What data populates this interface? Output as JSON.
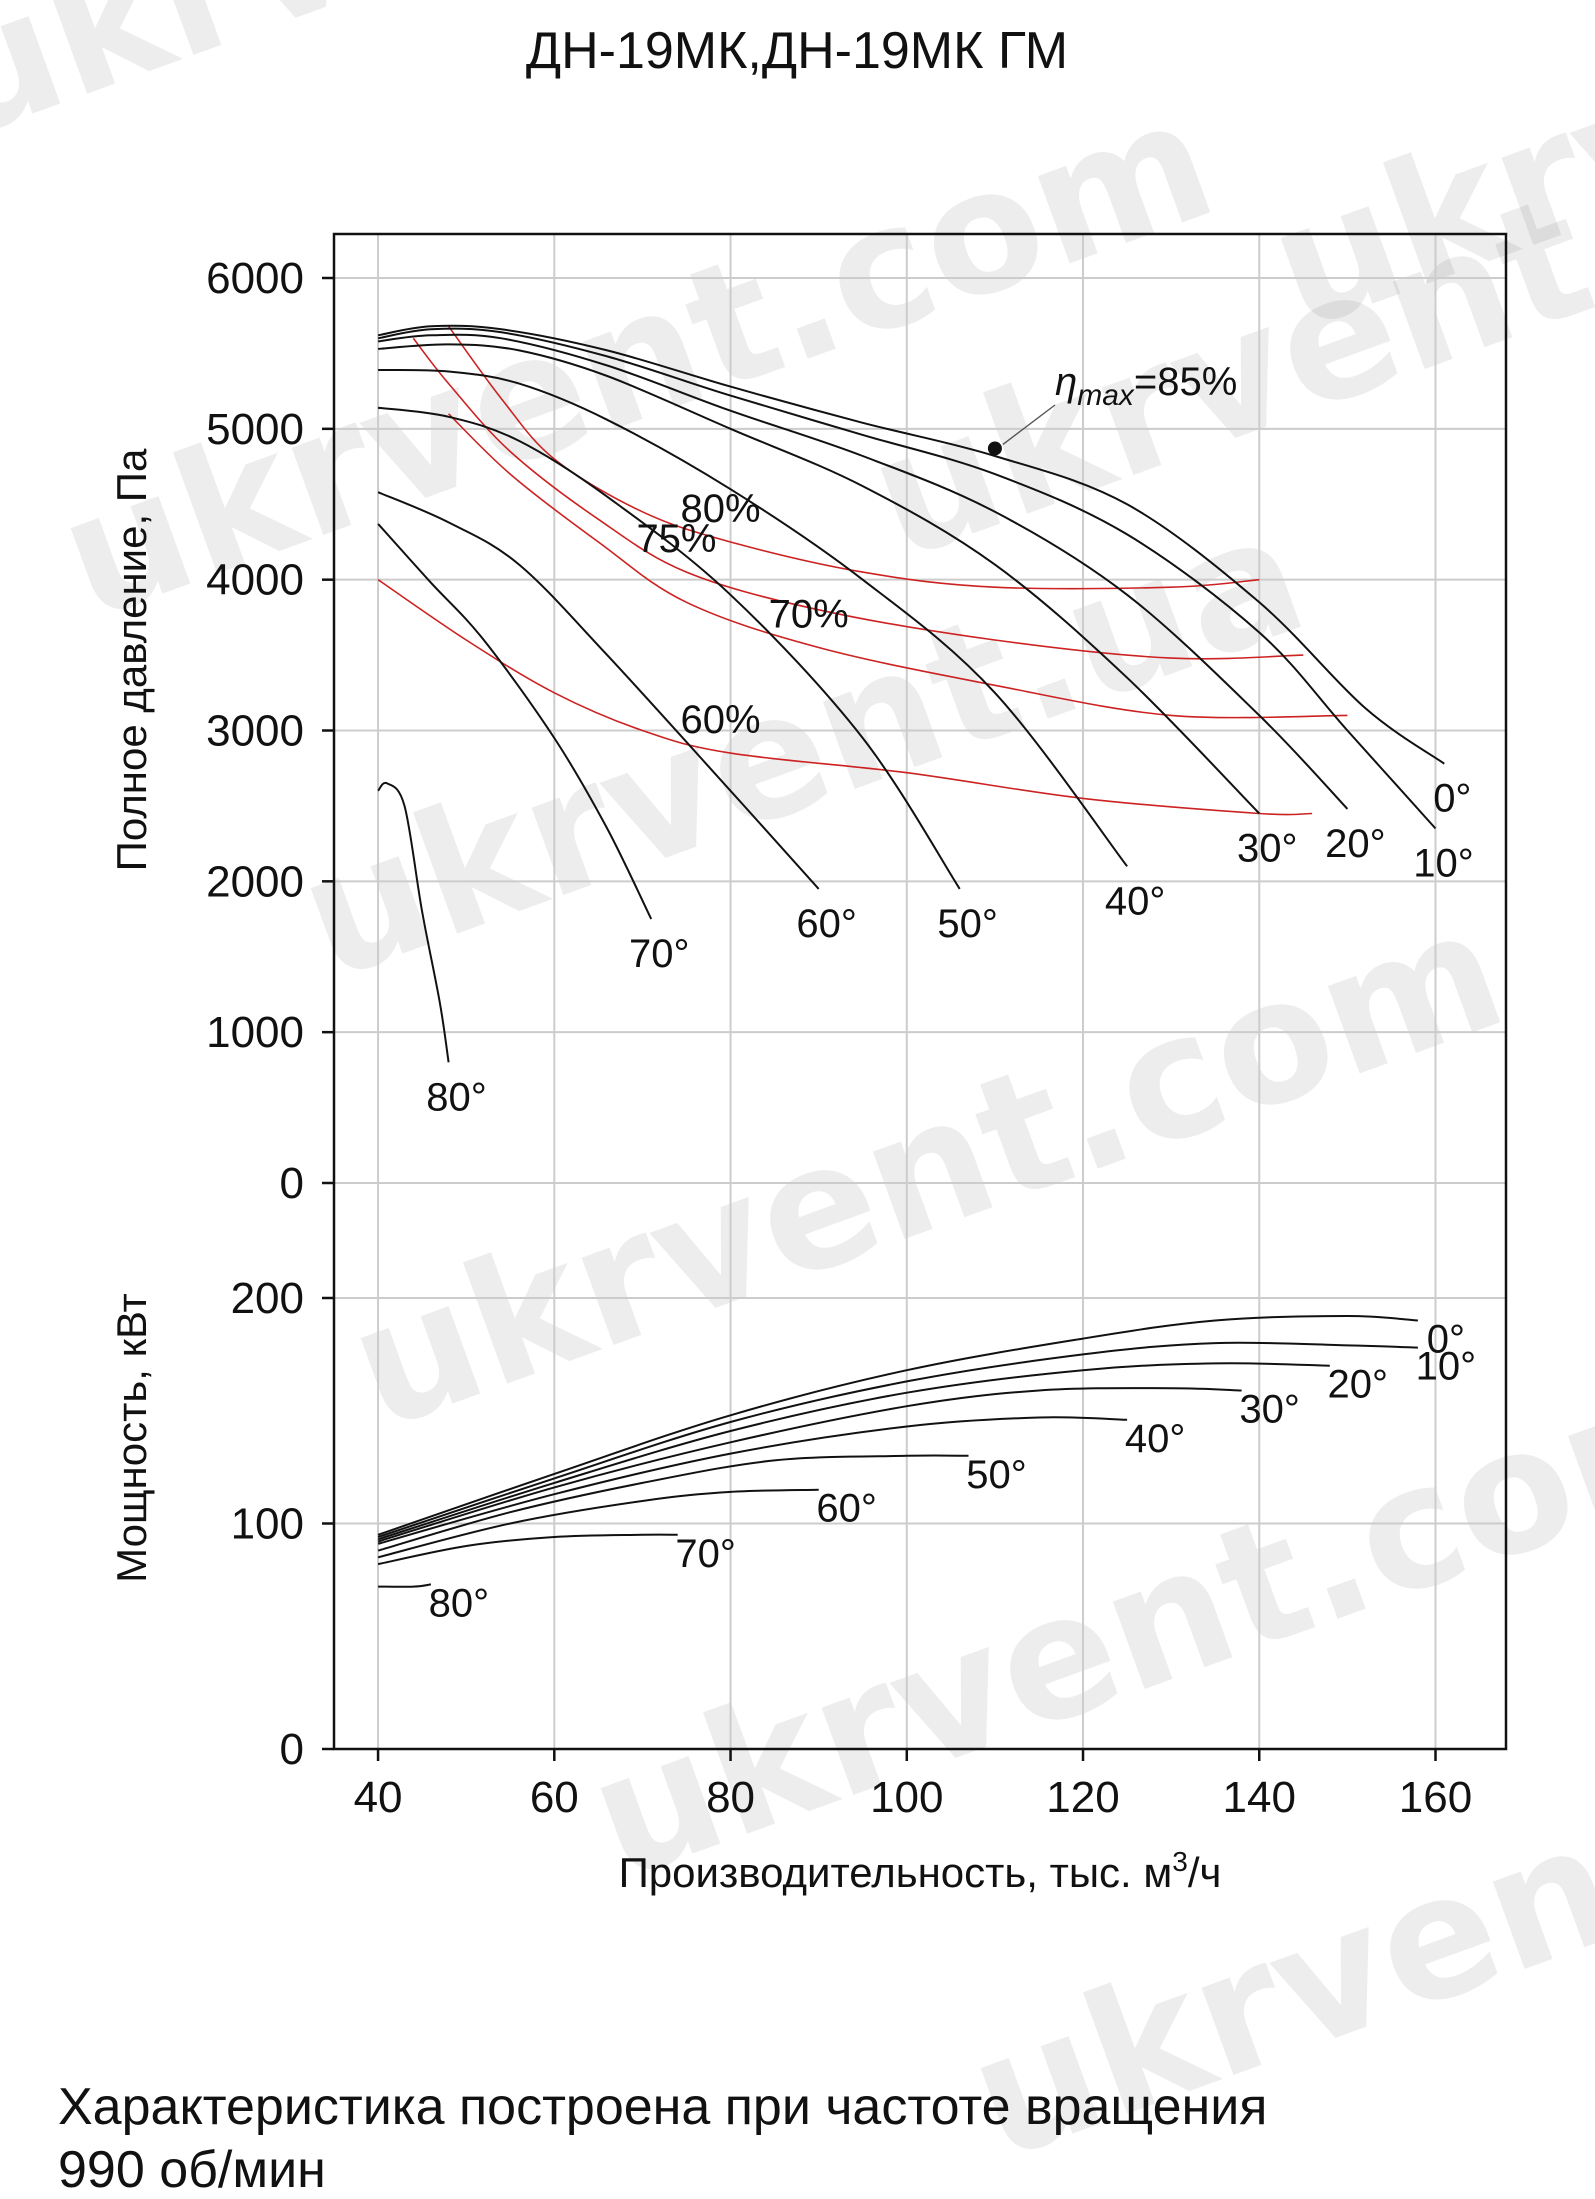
{
  "title": "ДН-19МК,ДН-19МК ГМ",
  "note_line1": "Характеристика построена при частоте вращения",
  "note_line2": "990 об/мин",
  "watermark": "ukrvent.com",
  "watermark_alt": "ukrvent.ua",
  "chart_data": {
    "type": "line",
    "xlabel": "Производительность, тыс. м",
    "xlabel_sup": "3",
    "xlabel_end": "/ч",
    "xlim": [
      35,
      168
    ],
    "xticks": [
      40,
      60,
      80,
      100,
      120,
      140,
      160
    ],
    "grid": true,
    "colors": {
      "pressure": "#111111",
      "efficiency": "#cc2222",
      "grid": "#cccccc"
    },
    "pressure_panel": {
      "ylabel": "Полное давление, Па",
      "ylim": [
        0,
        6300
      ],
      "yticks": [
        0,
        1000,
        2000,
        3000,
        4000,
        5000,
        6000
      ],
      "curves": [
        {
          "label": "0°",
          "points": [
            [
              40,
              5620
            ],
            [
              46,
              5680
            ],
            [
              54,
              5660
            ],
            [
              66,
              5520
            ],
            [
              80,
              5280
            ],
            [
              95,
              5040
            ],
            [
              110,
              4820
            ],
            [
              125,
              4500
            ],
            [
              140,
              3850
            ],
            [
              152,
              3150
            ],
            [
              161,
              2780
            ]
          ]
        },
        {
          "label": "10°",
          "points": [
            [
              40,
              5600
            ],
            [
              46,
              5660
            ],
            [
              54,
              5640
            ],
            [
              66,
              5480
            ],
            [
              80,
              5220
            ],
            [
              95,
              4960
            ],
            [
              110,
              4700
            ],
            [
              125,
              4300
            ],
            [
              140,
              3650
            ],
            [
              150,
              3000
            ],
            [
              160,
              2350
            ]
          ]
        },
        {
          "label": "20°",
          "points": [
            [
              40,
              5580
            ],
            [
              46,
              5620
            ],
            [
              54,
              5600
            ],
            [
              66,
              5420
            ],
            [
              80,
              5120
            ],
            [
              95,
              4820
            ],
            [
              110,
              4450
            ],
            [
              125,
              3900
            ],
            [
              140,
              3100
            ],
            [
              150,
              2480
            ]
          ]
        },
        {
          "label": "30°",
          "points": [
            [
              40,
              5530
            ],
            [
              48,
              5560
            ],
            [
              56,
              5520
            ],
            [
              66,
              5350
            ],
            [
              80,
              5000
            ],
            [
              95,
              4620
            ],
            [
              110,
              4100
            ],
            [
              125,
              3350
            ],
            [
              140,
              2450
            ]
          ]
        },
        {
          "label": "40°",
          "points": [
            [
              40,
              5390
            ],
            [
              48,
              5380
            ],
            [
              56,
              5300
            ],
            [
              66,
              5060
            ],
            [
              80,
              4600
            ],
            [
              95,
              4000
            ],
            [
              110,
              3250
            ],
            [
              125,
              2100
            ]
          ]
        },
        {
          "label": "50°",
          "points": [
            [
              40,
              5140
            ],
            [
              48,
              5080
            ],
            [
              56,
              4920
            ],
            [
              66,
              4550
            ],
            [
              80,
              3900
            ],
            [
              95,
              2950
            ],
            [
              106,
              1950
            ]
          ]
        },
        {
          "label": "60°",
          "points": [
            [
              40,
              4580
            ],
            [
              48,
              4380
            ],
            [
              56,
              4100
            ],
            [
              66,
              3500
            ],
            [
              80,
              2600
            ],
            [
              90,
              1950
            ]
          ]
        },
        {
          "label": "70°",
          "points": [
            [
              40,
              4370
            ],
            [
              46,
              3980
            ],
            [
              52,
              3600
            ],
            [
              60,
              2950
            ],
            [
              66,
              2350
            ],
            [
              71,
              1750
            ]
          ]
        },
        {
          "label": "80°",
          "points": [
            [
              40,
              2600
            ],
            [
              41,
              2650
            ],
            [
              43,
              2500
            ],
            [
              45,
              1800
            ],
            [
              47,
              1200
            ],
            [
              48,
              800
            ]
          ]
        }
      ],
      "efficiency": [
        {
          "label": "80%",
          "points": [
            [
              48,
              5680
            ],
            [
              54,
              5200
            ],
            [
              60,
              4800
            ],
            [
              70,
              4450
            ],
            [
              80,
              4250
            ],
            [
              95,
              4050
            ],
            [
              110,
              3950
            ],
            [
              130,
              3950
            ],
            [
              140,
              4000
            ]
          ]
        },
        {
          "label": "75%",
          "points": [
            [
              44,
              5600
            ],
            [
              48,
              5300
            ],
            [
              55,
              4850
            ],
            [
              65,
              4400
            ],
            [
              75,
              4050
            ],
            [
              90,
              3800
            ],
            [
              110,
              3600
            ],
            [
              130,
              3480
            ],
            [
              145,
              3500
            ]
          ]
        },
        {
          "label": "70%",
          "points": [
            [
              48,
              5100
            ],
            [
              55,
              4700
            ],
            [
              65,
              4250
            ],
            [
              75,
              3850
            ],
            [
              90,
              3550
            ],
            [
              110,
              3300
            ],
            [
              130,
              3100
            ],
            [
              150,
              3100
            ]
          ]
        },
        {
          "label": "60%",
          "points": [
            [
              40,
              4000
            ],
            [
              50,
              3600
            ],
            [
              60,
              3250
            ],
            [
              70,
              3000
            ],
            [
              80,
              2850
            ],
            [
              100,
              2720
            ],
            [
              120,
              2550
            ],
            [
              140,
              2450
            ],
            [
              146,
              2450
            ]
          ]
        }
      ],
      "eta_max": {
        "label": "η",
        "label_sub": "max",
        "label_tail": "=85%",
        "point": [
          110,
          4870
        ]
      }
    },
    "power_panel": {
      "ylabel": "Мощность, кВт",
      "ylim": [
        0,
        200
      ],
      "yticks": [
        0,
        100,
        200
      ],
      "curves": [
        {
          "label": "0°",
          "points": [
            [
              40,
              95
            ],
            [
              60,
              122
            ],
            [
              80,
              148
            ],
            [
              100,
              168
            ],
            [
              120,
              182
            ],
            [
              135,
              190
            ],
            [
              150,
              192
            ],
            [
              158,
              190
            ]
          ]
        },
        {
          "label": "10°",
          "points": [
            [
              40,
              94
            ],
            [
              60,
              120
            ],
            [
              80,
              145
            ],
            [
              100,
              163
            ],
            [
              120,
              175
            ],
            [
              135,
              180
            ],
            [
              150,
              179
            ],
            [
              158,
              178
            ]
          ]
        },
        {
          "label": "20°",
          "points": [
            [
              40,
              93
            ],
            [
              60,
              118
            ],
            [
              80,
              141
            ],
            [
              100,
              158
            ],
            [
              120,
              168
            ],
            [
              135,
              171
            ],
            [
              148,
              170
            ]
          ]
        },
        {
          "label": "30°",
          "points": [
            [
              40,
              92
            ],
            [
              60,
              116
            ],
            [
              80,
              136
            ],
            [
              100,
              152
            ],
            [
              115,
              159
            ],
            [
              130,
              160
            ],
            [
              138,
              159
            ]
          ]
        },
        {
          "label": "40°",
          "points": [
            [
              40,
              91
            ],
            [
              60,
              113
            ],
            [
              80,
              131
            ],
            [
              100,
              143
            ],
            [
              115,
              147
            ],
            [
              125,
              146
            ]
          ]
        },
        {
          "label": "50°",
          "points": [
            [
              40,
              88
            ],
            [
              55,
              105
            ],
            [
              70,
              118
            ],
            [
              85,
              128
            ],
            [
              100,
              130
            ],
            [
              107,
              130
            ]
          ]
        },
        {
          "label": "60°",
          "points": [
            [
              40,
              85
            ],
            [
              55,
              100
            ],
            [
              70,
              110
            ],
            [
              80,
              114
            ],
            [
              90,
              115
            ]
          ]
        },
        {
          "label": "70°",
          "points": [
            [
              40,
              82
            ],
            [
              50,
              90
            ],
            [
              60,
              94
            ],
            [
              70,
              95
            ],
            [
              74,
              95
            ]
          ]
        },
        {
          "label": "80°",
          "points": [
            [
              40,
              72
            ],
            [
              44,
              72
            ],
            [
              46,
              73
            ]
          ]
        }
      ]
    }
  }
}
